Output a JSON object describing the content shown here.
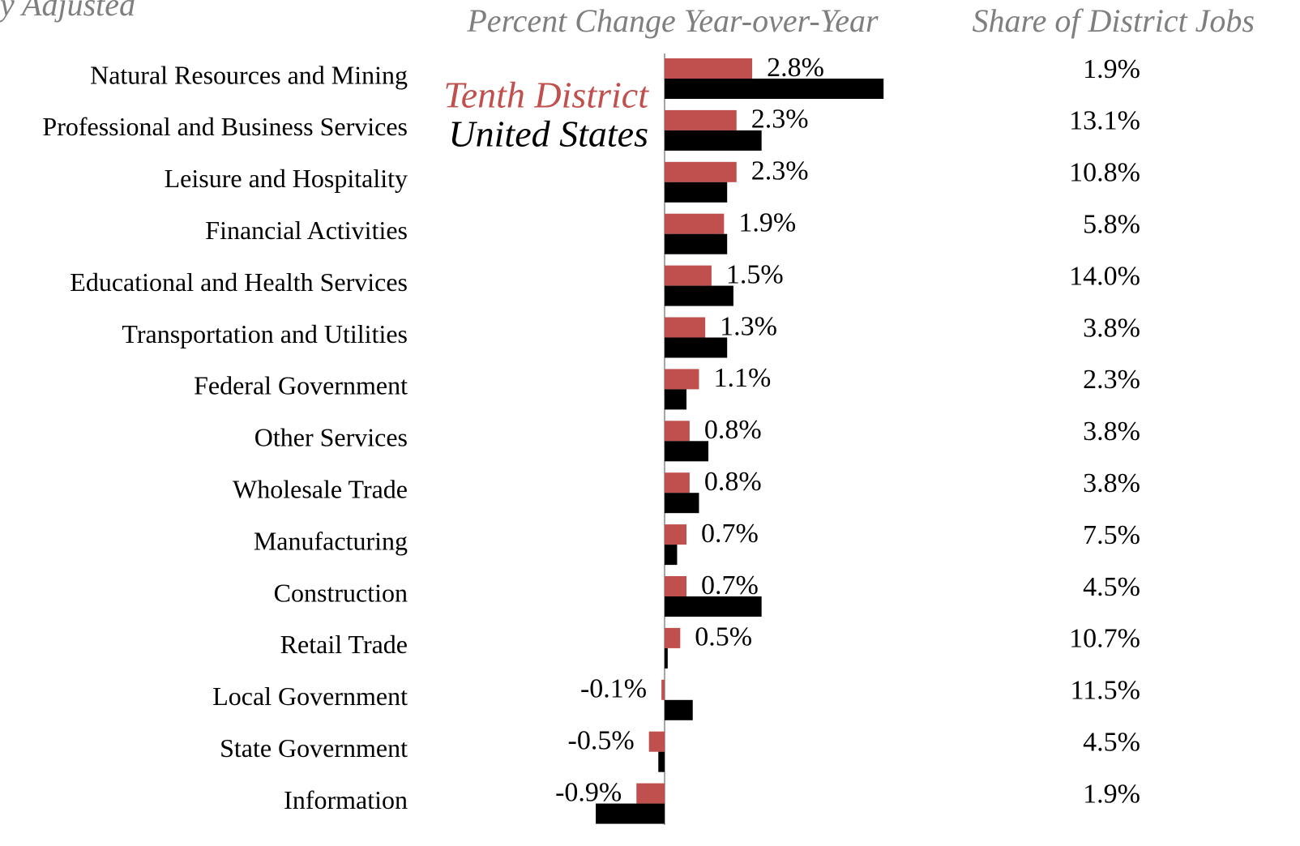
{
  "chart_data": {
    "type": "bar",
    "orientation": "horizontal",
    "subtitle": "y Adjusted",
    "title": "Percent Change Year-over-Year",
    "share_title": "Share of District Jobs",
    "categories": [
      "Natural Resources and Mining",
      "Professional and Business Services",
      "Leisure and Hospitality",
      "Financial Activities",
      "Educational and Health Services",
      "Transportation and Utilities",
      "Federal Government",
      "Other Services",
      "Wholesale Trade",
      "Manufacturing",
      "Construction",
      "Retail Trade",
      "Local Government",
      "State Government",
      "Information"
    ],
    "series": [
      {
        "name": "Tenth District",
        "color": "#c0504d",
        "values": [
          2.8,
          2.3,
          2.3,
          1.9,
          1.5,
          1.3,
          1.1,
          0.8,
          0.8,
          0.7,
          0.7,
          0.5,
          -0.1,
          -0.5,
          -0.9
        ],
        "value_labels": [
          "2.8%",
          "2.3%",
          "2.3%",
          "1.9%",
          "1.5%",
          "1.3%",
          "1.1%",
          "0.8%",
          "0.8%",
          "0.7%",
          "0.7%",
          "0.5%",
          "-0.1%",
          "-0.5%",
          "-0.9%"
        ]
      },
      {
        "name": "United States",
        "color": "#000000",
        "values": [
          7.0,
          3.1,
          2.0,
          2.0,
          2.2,
          2.0,
          0.7,
          1.4,
          1.1,
          0.4,
          3.1,
          0.1,
          0.9,
          -0.2,
          -2.2
        ]
      }
    ],
    "share_labels": [
      "1.9%",
      "13.1%",
      "10.8%",
      "5.8%",
      "14.0%",
      "3.8%",
      "2.3%",
      "3.8%",
      "3.8%",
      "7.5%",
      "4.5%",
      "10.7%",
      "11.5%",
      "4.5%",
      "1.9%"
    ]
  }
}
